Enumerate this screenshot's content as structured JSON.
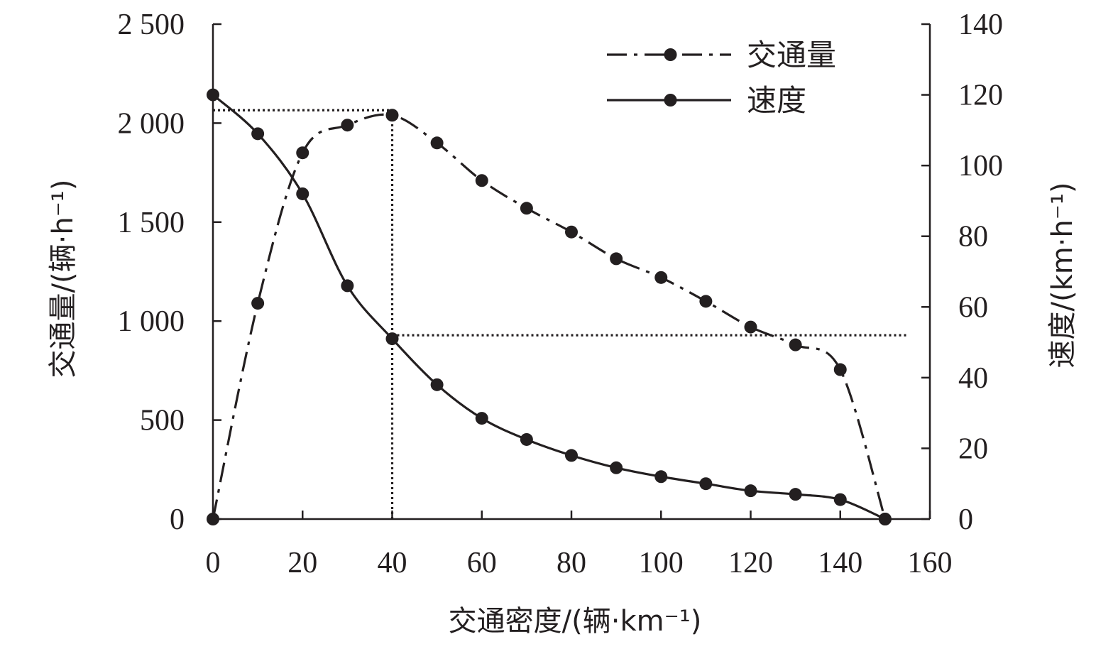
{
  "chart_data": {
    "type": "line",
    "xlabel": "交通密度/(辆·km⁻¹)",
    "ylabel_left": "交通量/(辆·h⁻¹)",
    "ylabel_right": "速度/(km·h⁻¹)",
    "xlim": [
      0,
      160
    ],
    "ylim_left": [
      0,
      2500
    ],
    "ylim_right": [
      0,
      140
    ],
    "xticks": [
      0,
      20,
      40,
      60,
      80,
      100,
      120,
      140,
      160
    ],
    "xtick_labels": [
      "0",
      "20",
      "40",
      "60",
      "80",
      "100",
      "120",
      "140",
      "160"
    ],
    "yticks_left": [
      0,
      500,
      1000,
      1500,
      2000,
      2500
    ],
    "ytick_labels_left": [
      "0",
      "500",
      "1 000",
      "1 500",
      "2 000",
      "2 500"
    ],
    "yticks_right": [
      0,
      20,
      40,
      60,
      80,
      100,
      120,
      140
    ],
    "ytick_labels_right": [
      "0",
      "20",
      "40",
      "60",
      "80",
      "100",
      "120",
      "140"
    ],
    "legend_position": "top-right",
    "grid": false,
    "x": [
      0,
      10,
      20,
      30,
      40,
      50,
      60,
      70,
      80,
      90,
      100,
      110,
      120,
      130,
      140,
      150
    ],
    "series": [
      {
        "name": "交通量",
        "axis": "left",
        "style": "dash-dot",
        "values": [
          0,
          1090,
          1850,
          1990,
          2040,
          1900,
          1710,
          1570,
          1450,
          1315,
          1220,
          1100,
          970,
          880,
          755,
          0
        ]
      },
      {
        "name": "速度",
        "axis": "right",
        "style": "solid",
        "values": [
          120,
          109,
          92,
          66,
          51,
          38,
          28.5,
          22.5,
          18,
          14.5,
          12,
          10,
          8,
          7,
          5.5,
          0
        ]
      }
    ],
    "reference_lines": [
      {
        "axis": "left",
        "from": [
          0,
          2065
        ],
        "to": [
          40,
          2065
        ]
      },
      {
        "axis": "left",
        "from": [
          40,
          0
        ],
        "to": [
          40,
          2065
        ]
      },
      {
        "axis": "right",
        "from": [
          40,
          52
        ],
        "to": [
          155,
          52
        ]
      }
    ],
    "colors": {
      "ink": "#231f20",
      "background": "#ffffff"
    }
  }
}
